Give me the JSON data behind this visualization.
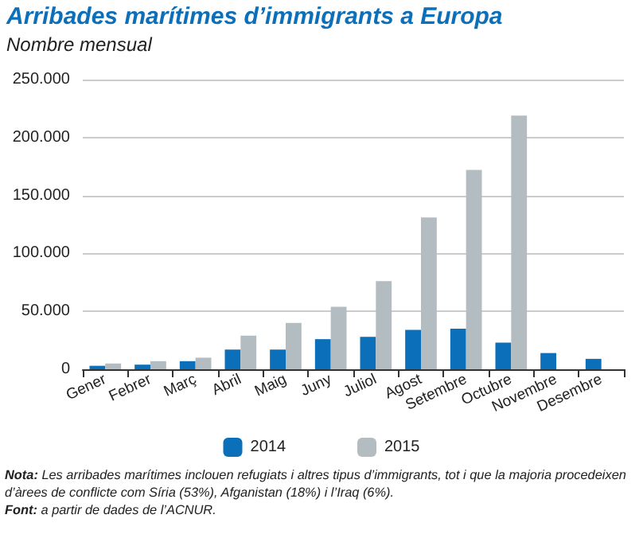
{
  "chart_data": {
    "type": "bar",
    "title": "Arribades marítimes d’immigrants a Europa",
    "subtitle": "Nombre mensual",
    "categories": [
      "Gener",
      "Febrer",
      "Març",
      "Abril",
      "Maig",
      "Juny",
      "Juliol",
      "Agost",
      "Setembre",
      "Octubre",
      "Novembre",
      "Desembre"
    ],
    "series": [
      {
        "name": "2014",
        "color": "#0b6fba",
        "values": [
          3000,
          4000,
          7000,
          17000,
          17000,
          26000,
          28000,
          34000,
          35000,
          23000,
          14000,
          9000
        ]
      },
      {
        "name": "2015",
        "color": "#b3bcc1",
        "values": [
          5000,
          7000,
          10000,
          29000,
          40000,
          54000,
          76000,
          131000,
          172000,
          219000,
          null,
          null
        ]
      }
    ],
    "ylim": [
      0,
      250000
    ],
    "yticks": [
      0,
      {
        "value": 50000,
        "label": "50.000"
      },
      {
        "value": 100000,
        "label": "100.000"
      },
      {
        "value": 150000,
        "label": "150.000"
      },
      {
        "value": 200000,
        "label": "200.000"
      },
      {
        "value": 250000,
        "label": "250.000"
      }
    ],
    "grid": "y",
    "legend": "bottom",
    "annotations": [
      "Nota: Les arribades marítimes inclouen refugiats i altres tipus d’immigrants, tot i que la majoria procedeixen d’àrees de conflicte com Síria (53%), Afganistan (18%) i l’Iraq (6%).",
      "Font: a partir de dades de l’ACNUR."
    ]
  }
}
